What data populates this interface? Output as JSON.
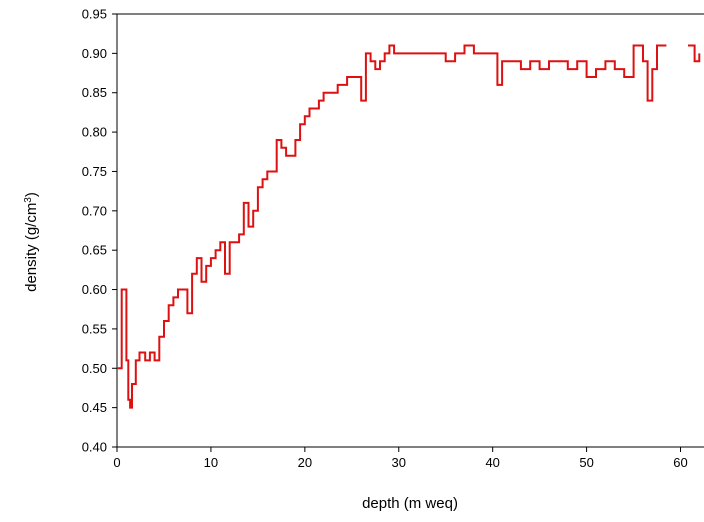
{
  "chart_data": {
    "type": "line",
    "title": "",
    "xlabel": "depth (m weq)",
    "ylabel": "density (g/cm",
    "ylabel_sup": "3",
    "ylabel_end": ")",
    "xlim": [
      0,
      62.5
    ],
    "ylim": [
      0.4,
      0.95
    ],
    "x_ticks": [
      0,
      10,
      20,
      30,
      40,
      50,
      60
    ],
    "x_tick_labels": [
      "0",
      "10",
      "20",
      "30",
      "40",
      "50",
      "60"
    ],
    "y_ticks": [
      0.4,
      0.45,
      0.5,
      0.55,
      0.6,
      0.65,
      0.7,
      0.75,
      0.8,
      0.85,
      0.9,
      0.95
    ],
    "y_tick_labels": [
      "0.40",
      "0.45",
      "0.50",
      "0.55",
      "0.60",
      "0.65",
      "0.70",
      "0.75",
      "0.80",
      "0.85",
      "0.90",
      "0.95"
    ],
    "grid": false,
    "line_color": "#dd1111",
    "step": true,
    "series": [
      {
        "x": [
          0,
          0.5,
          1,
          1.2,
          1.4,
          1.6,
          2.0,
          2.4,
          3.0,
          3.5,
          4.0,
          4.5,
          5.0,
          5.5,
          6.0,
          6.5,
          7.0,
          7.5,
          8.0,
          8.5,
          9.0,
          9.5,
          10.0,
          10.5,
          11.0,
          11.5,
          12.0,
          12.5,
          13.0,
          13.5,
          14.0,
          14.5,
          15.0,
          15.5,
          16.0,
          16.5,
          17.0,
          17.5,
          18.0,
          18.5,
          19.0,
          19.5,
          20.0,
          20.5,
          21.0,
          21.5,
          22.0,
          22.5,
          23.0,
          23.5,
          24.0,
          24.5,
          25.0,
          25.5,
          26.0,
          26.5,
          27.0,
          27.5,
          28.0,
          28.5,
          29.0,
          29.5,
          30.0,
          31.0,
          32.0,
          33.0,
          34.0,
          35.0,
          36.0,
          37.0,
          38.0,
          39.0,
          40.0,
          40.5,
          41.0,
          42.0,
          43.0,
          44.0,
          45.0,
          46.0,
          47.0,
          48.0,
          49.0,
          50.0,
          51.0,
          52.0,
          53.0,
          54.0,
          55.0,
          56.0,
          56.5,
          57.0,
          57.5,
          58.0
        ],
        "y": [
          0.5,
          0.6,
          0.51,
          0.46,
          0.45,
          0.48,
          0.51,
          0.52,
          0.51,
          0.52,
          0.51,
          0.54,
          0.56,
          0.58,
          0.59,
          0.6,
          0.6,
          0.57,
          0.62,
          0.64,
          0.61,
          0.63,
          0.64,
          0.65,
          0.66,
          0.62,
          0.66,
          0.66,
          0.67,
          0.71,
          0.68,
          0.7,
          0.73,
          0.74,
          0.75,
          0.75,
          0.79,
          0.78,
          0.77,
          0.77,
          0.79,
          0.81,
          0.82,
          0.83,
          0.83,
          0.84,
          0.85,
          0.85,
          0.85,
          0.86,
          0.86,
          0.87,
          0.87,
          0.87,
          0.84,
          0.9,
          0.89,
          0.88,
          0.89,
          0.9,
          0.91,
          0.9,
          0.9,
          0.9,
          0.9,
          0.9,
          0.9,
          0.89,
          0.9,
          0.91,
          0.9,
          0.9,
          0.9,
          0.86,
          0.89,
          0.89,
          0.88,
          0.89,
          0.88,
          0.89,
          0.89,
          0.88,
          0.89,
          0.87,
          0.88,
          0.89,
          0.88,
          0.87,
          0.91,
          0.89,
          0.84,
          0.88,
          0.91,
          0.91
        ]
      },
      {
        "x": [
          60.8,
          61.5,
          62.0
        ],
        "y": [
          0.91,
          0.89,
          0.9
        ]
      }
    ]
  }
}
